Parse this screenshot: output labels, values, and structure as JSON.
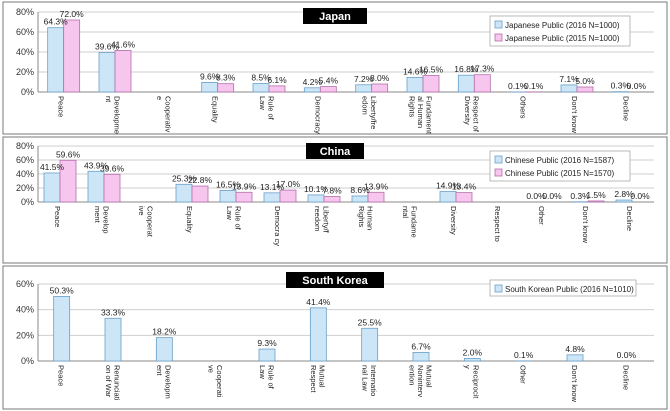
{
  "chart_data": [
    {
      "type": "bar",
      "title": "Japan",
      "categories": [
        "Peace",
        "Developme nt",
        "Cooperativ e",
        "Equality",
        "Rule of Law",
        "Democracy",
        "Liberty/fre edom",
        "Fundament al Human Rights",
        "Respect of Diversity",
        "Others",
        "Don't know",
        "Decline"
      ],
      "series": [
        {
          "name": "Japanese Public (2016  N=1000)",
          "values": [
            64.3,
            39.6,
            null,
            9.6,
            8.5,
            4.2,
            7.2,
            14.6,
            16.8,
            0.1,
            7.1,
            0.3
          ]
        },
        {
          "name": "Japanese Public (2015  N=1000)",
          "values": [
            72.0,
            41.6,
            null,
            8.3,
            6.1,
            5.4,
            8.0,
            16.5,
            17.3,
            0.1,
            5.0,
            0.0
          ]
        }
      ],
      "data_labels": [
        [
          "64.3%",
          "72.0%"
        ],
        [
          "39.6%",
          "41.6%"
        ],
        [
          "",
          ""
        ],
        [
          "9.6%",
          "8.3%"
        ],
        [
          "8.5%",
          "6.1%"
        ],
        [
          "4.2%",
          "5.4%"
        ],
        [
          "7.2%",
          "8.0%"
        ],
        [
          "14.6%",
          "16.5%"
        ],
        [
          "16.8%",
          "17.3%"
        ],
        [
          "0.1%",
          "0.1%"
        ],
        [
          "7.1%",
          "5.0%"
        ],
        [
          "0.3%",
          "0.0%"
        ]
      ],
      "yticks": [
        "0%",
        "20%",
        "40%",
        "60%",
        "80%"
      ],
      "ylim": [
        0,
        80
      ],
      "legend": "top-right",
      "colors": {
        "s2016": "#cce6f7",
        "s2015": "#f7c6ef",
        "edge2016": "#6a9fc8",
        "edge2015": "#b36fa8"
      }
    },
    {
      "type": "bar",
      "title": "China",
      "categories": [
        "Peace",
        "Develop ment",
        "Cooperat ive",
        "Equality",
        "Rule of Law",
        "Democra cy",
        "Liberty/f reedom",
        "Human Rights",
        "Fundame ntal",
        "Diversity",
        "Respect to",
        "Other",
        "Don't know",
        "Decline"
      ],
      "series": [
        {
          "name": "Chinese Public (2016   N=1587)",
          "values": [
            41.5,
            43.9,
            null,
            25.3,
            16.5,
            13.1,
            10.1,
            8.6,
            null,
            14.9,
            null,
            0.0,
            0.3,
            2.8
          ]
        },
        {
          "name": "Chinese Public (2015   N=1570)",
          "values": [
            59.6,
            39.6,
            null,
            22.8,
            13.9,
            17.0,
            7.8,
            13.9,
            null,
            13.4,
            null,
            0.0,
            1.5,
            0.0
          ]
        }
      ],
      "data_labels": [
        [
          "41.5%",
          "59.6%"
        ],
        [
          "43.9%",
          "39.6%"
        ],
        [
          "",
          ""
        ],
        [
          "25.3%",
          "22.8%"
        ],
        [
          "16.5%",
          "13.9%"
        ],
        [
          "13.1%",
          "17.0%"
        ],
        [
          "10.1%",
          "7.8%"
        ],
        [
          "8.6%",
          "13.9%"
        ],
        [
          "",
          ""
        ],
        [
          "14.9%",
          "13.4%"
        ],
        [
          "",
          ""
        ],
        [
          "0.0%",
          "0.0%"
        ],
        [
          "0.3%",
          "1.5%"
        ],
        [
          "2.8%",
          "0.0%"
        ]
      ],
      "yticks": [
        "0%",
        "20%",
        "40%",
        "60%",
        "80%"
      ],
      "ylim": [
        0,
        80
      ],
      "legend": "top-right",
      "colors": {
        "s2016": "#cce6f7",
        "s2015": "#f7c6ef",
        "edge2016": "#6a9fc8",
        "edge2015": "#b36fa8"
      }
    },
    {
      "type": "bar",
      "title": "South Korea",
      "categories": [
        "Peace",
        "Renunciati on of War",
        "Developm ent",
        "Cooperati ve",
        "Rule of Law",
        "Mutual Respect",
        "Internatio nal Law",
        "Mutual Noninterv ention",
        "Reciprocit y",
        "Other",
        "Don't know",
        "Decline"
      ],
      "series": [
        {
          "name": "South Korean Public (2016  N=1010)",
          "values": [
            50.3,
            33.3,
            18.2,
            null,
            9.3,
            41.4,
            25.5,
            6.7,
            2.0,
            0.1,
            4.8,
            0.0
          ]
        }
      ],
      "data_labels": [
        [
          "50.3%"
        ],
        [
          "33.3%"
        ],
        [
          "18.2%"
        ],
        [
          ""
        ],
        [
          "9.3%"
        ],
        [
          "41.4%"
        ],
        [
          "25.5%"
        ],
        [
          "6.7%"
        ],
        [
          "2.0%"
        ],
        [
          "0.1%"
        ],
        [
          "4.8%"
        ],
        [
          "0.0%"
        ]
      ],
      "yticks": [
        "0%",
        "20%",
        "40%",
        "60%"
      ],
      "ylim": [
        0,
        60
      ],
      "legend": "top-right",
      "colors": {
        "s2016": "#cce6f7",
        "edge2016": "#6a9fc8"
      }
    }
  ]
}
